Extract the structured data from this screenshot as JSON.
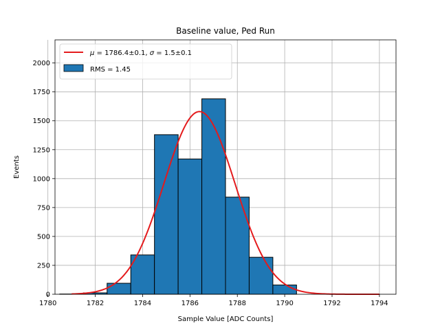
{
  "chart_data": {
    "type": "bar",
    "title": "Baseline value, Ped Run",
    "xlabel": "Sample Value [ADC Counts]",
    "ylabel": "Events",
    "xlim": [
      1780.3,
      1794.7
    ],
    "ylim": [
      0,
      2200
    ],
    "x_ticks": [
      1780,
      1782,
      1784,
      1786,
      1788,
      1790,
      1792,
      1794
    ],
    "y_ticks": [
      0,
      250,
      500,
      750,
      1000,
      1250,
      1500,
      1750,
      2000
    ],
    "grid": true,
    "legend_position": "top-left",
    "histogram": {
      "bin_edges": [
        1780.5,
        1781.5,
        1782.5,
        1783.5,
        1784.5,
        1785.5,
        1786.5,
        1787.5,
        1788.5,
        1789.5,
        1790.5
      ],
      "counts": [
        2,
        12,
        95,
        340,
        1380,
        1170,
        1690,
        840,
        320,
        80
      ],
      "label": "RMS = 1.45",
      "color": "#1f77b4",
      "edgecolor": "#000000"
    },
    "fit": {
      "label": "μ = 1786.4±0.1, σ = 1.5±0.1",
      "label_mu": "μ",
      "label_text": " = 1786.4±0.1, ",
      "label_sigma": "σ",
      "label_text2": " = 1.5±0.1",
      "mu": 1786.4,
      "sigma": 1.5,
      "amplitude": 1580,
      "x_range": [
        1781,
        1794
      ],
      "color": "#e41a1c"
    }
  }
}
